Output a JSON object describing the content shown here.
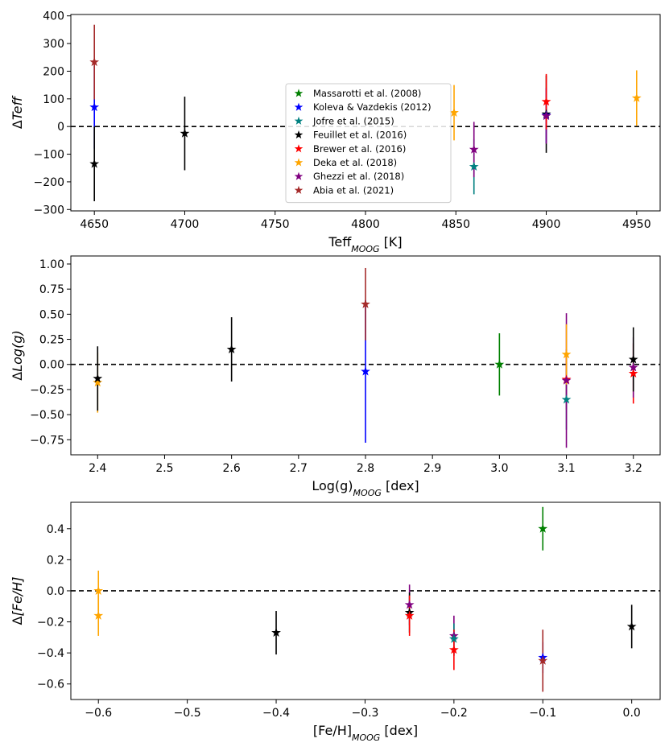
{
  "chart_data": [
    {
      "type": "scatter",
      "id": "teff",
      "xlabel": {
        "base": "Teff",
        "sub": "MOOG",
        "suffix": " [K]"
      },
      "ylabel": {
        "prefix": "Δ",
        "italic": "Teff",
        "suffix": ""
      },
      "xlim": [
        4637,
        4963
      ],
      "ylim": [
        -305,
        405
      ],
      "xticks": [
        4650,
        4700,
        4750,
        4800,
        4850,
        4900,
        4950
      ],
      "xtick_labels": [
        "4650",
        "4700",
        "4750",
        "4800",
        "4850",
        "4900",
        "4950"
      ],
      "yticks": [
        -300,
        -200,
        -100,
        0,
        100,
        200,
        300,
        400
      ],
      "ytick_labels": [
        "−300",
        "−200",
        "−100",
        "0",
        "100",
        "200",
        "300",
        "400"
      ],
      "reference_line": 0,
      "legend": {
        "location": "center"
      },
      "points": [
        {
          "series": 1,
          "x": 4650,
          "y": 70,
          "err": 150
        },
        {
          "series": 3,
          "x": 4650,
          "y": -135,
          "err": 135
        },
        {
          "series": 7,
          "x": 4650,
          "y": 233,
          "err": 135
        },
        {
          "series": 3,
          "x": 4700,
          "y": -25,
          "err": 133
        },
        {
          "series": 5,
          "x": 4849,
          "y": 50,
          "err": 100
        },
        {
          "series": 2,
          "x": 4860,
          "y": -145,
          "err": 100
        },
        {
          "series": 6,
          "x": 4860,
          "y": -83,
          "err": 100
        },
        {
          "series": 3,
          "x": 4900,
          "y": 45,
          "err": 140
        },
        {
          "series": 1,
          "x": 4900,
          "y": 40,
          "err": 100
        },
        {
          "series": 6,
          "x": 4900,
          "y": 38,
          "err": 100
        },
        {
          "series": 4,
          "x": 4900,
          "y": 90,
          "err": 100
        },
        {
          "series": 5,
          "x": 4950,
          "y": 103,
          "err": 100
        }
      ]
    },
    {
      "type": "scatter",
      "id": "logg",
      "xlabel": {
        "base": "Log(g)",
        "sub": "MOOG",
        "suffix": " [dex]"
      },
      "ylabel": {
        "prefix": "Δ",
        "italic": "Log(g)",
        "suffix": ""
      },
      "xlim": [
        2.36,
        3.24
      ],
      "ylim": [
        -0.9,
        1.08
      ],
      "xticks": [
        2.4,
        2.5,
        2.6,
        2.7,
        2.8,
        2.9,
        3.0,
        3.1,
        3.2
      ],
      "xtick_labels": [
        "2.4",
        "2.5",
        "2.6",
        "2.7",
        "2.8",
        "2.9",
        "3.0",
        "3.1",
        "3.2"
      ],
      "yticks": [
        -0.75,
        -0.5,
        -0.25,
        0,
        0.25,
        0.5,
        0.75,
        1.0
      ],
      "ytick_labels": [
        "−0.75",
        "−0.50",
        "−0.25",
        "0.00",
        "0.25",
        "0.50",
        "0.75",
        "1.00"
      ],
      "reference_line": 0,
      "points": [
        {
          "series": 5,
          "x": 2.4,
          "y": -0.18,
          "err": 0.3
        },
        {
          "series": 3,
          "x": 2.4,
          "y": -0.14,
          "err": 0.32
        },
        {
          "series": 3,
          "x": 2.6,
          "y": 0.15,
          "err": 0.32
        },
        {
          "series": 1,
          "x": 2.8,
          "y": -0.07,
          "err": 0.71
        },
        {
          "series": 7,
          "x": 2.8,
          "y": 0.6,
          "err": 0.36
        },
        {
          "series": 0,
          "x": 3.0,
          "y": 0.0,
          "err": 0.31
        },
        {
          "series": 4,
          "x": 3.1,
          "y": -0.15,
          "err": 0.3
        },
        {
          "series": 2,
          "x": 3.1,
          "y": -0.35,
          "err": 0.3
        },
        {
          "series": 6,
          "x": 3.1,
          "y": -0.16,
          "err": 0.67
        },
        {
          "series": 5,
          "x": 3.1,
          "y": 0.1,
          "err": 0.3
        },
        {
          "series": 4,
          "x": 3.2,
          "y": -0.09,
          "err": 0.3
        },
        {
          "series": 6,
          "x": 3.2,
          "y": -0.03,
          "err": 0.3
        },
        {
          "series": 3,
          "x": 3.2,
          "y": 0.05,
          "err": 0.32
        }
      ]
    },
    {
      "type": "scatter",
      "id": "feh",
      "xlabel": {
        "base": "[Fe/H]",
        "sub": "MOOG",
        "suffix": " [dex]"
      },
      "ylabel": {
        "prefix": "Δ",
        "italic": "[Fe/H]",
        "suffix": ""
      },
      "xlim": [
        -0.631,
        0.032
      ],
      "ylim": [
        -0.7,
        0.57
      ],
      "xticks": [
        -0.6,
        -0.5,
        -0.4,
        -0.3,
        -0.2,
        -0.1,
        0.0
      ],
      "xtick_labels": [
        "−0.6",
        "−0.5",
        "−0.4",
        "−0.3",
        "−0.2",
        "−0.1",
        "0.0"
      ],
      "yticks": [
        -0.6,
        -0.4,
        -0.2,
        0,
        0.2,
        0.4
      ],
      "ytick_labels": [
        "−0.6",
        "−0.4",
        "−0.2",
        "0.0",
        "0.2",
        "0.4"
      ],
      "reference_line": 0,
      "points": [
        {
          "series": 5,
          "x": -0.6,
          "y": 0.0,
          "err": 0.13
        },
        {
          "series": 5,
          "x": -0.6,
          "y": -0.16,
          "err": 0.13
        },
        {
          "series": 3,
          "x": -0.4,
          "y": -0.27,
          "err": 0.14
        },
        {
          "series": 6,
          "x": -0.25,
          "y": -0.09,
          "err": 0.13
        },
        {
          "series": 3,
          "x": -0.25,
          "y": -0.14,
          "err": 0.13
        },
        {
          "series": 4,
          "x": -0.25,
          "y": -0.16,
          "err": 0.13
        },
        {
          "series": 6,
          "x": -0.2,
          "y": -0.29,
          "err": 0.13
        },
        {
          "series": 2,
          "x": -0.2,
          "y": -0.31,
          "err": 0.1
        },
        {
          "series": 4,
          "x": -0.2,
          "y": -0.38,
          "err": 0.13
        },
        {
          "series": 0,
          "x": -0.1,
          "y": 0.4,
          "err": 0.14
        },
        {
          "series": 1,
          "x": -0.1,
          "y": -0.43,
          "err": 0.1
        },
        {
          "series": 7,
          "x": -0.1,
          "y": -0.45,
          "err": 0.2
        },
        {
          "series": 3,
          "x": 0.0,
          "y": -0.23,
          "err": 0.14
        }
      ]
    }
  ],
  "series": [
    {
      "name": "Massarotti et al. (2008)",
      "color": "#008000"
    },
    {
      "name": "Koleva & Vazdekis (2012)",
      "color": "#0000ff"
    },
    {
      "name": "Jofre et al. (2015)",
      "color": "#008080"
    },
    {
      "name": "Feuillet et al. (2016)",
      "color": "#000000"
    },
    {
      "name": "Brewer et al. (2016)",
      "color": "#ff0000"
    },
    {
      "name": "Deka et al. (2018)",
      "color": "#ffa500"
    },
    {
      "name": "Ghezzi et al. (2018)",
      "color": "#800080"
    },
    {
      "name": "Abia et al. (2021)",
      "color": "#a52a2a"
    }
  ]
}
